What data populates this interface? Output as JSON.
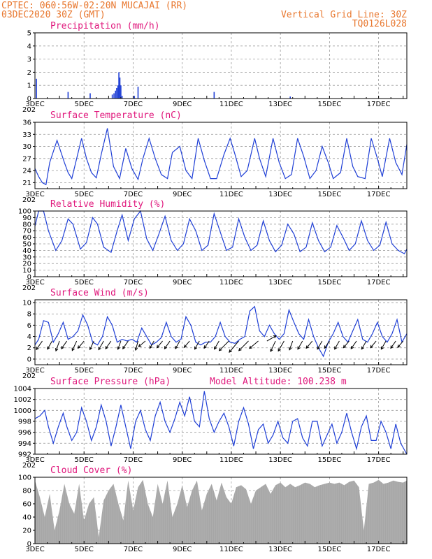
{
  "header": {
    "line1": "CPTEC:   060:56W-02:20N   MUCAJAI (RR)",
    "line2": "03DEC2020 30Z (GMT)",
    "right1": "Vertical Grid Line: 30Z",
    "right2": "TQ0126L028"
  },
  "x_axis": {
    "day_labels": [
      "3DEC",
      "5DEC",
      "7DEC",
      "9DEC",
      "11DEC",
      "13DEC",
      "15DEC",
      "17DEC"
    ],
    "year_fragment": "202"
  },
  "colors": {
    "line": "#1f3fd6",
    "bars": "#1f3fd6",
    "cloud": "#a6a6a6",
    "title": "#e0197d",
    "header": "#e8772e"
  },
  "chart_data": [
    {
      "type": "bar",
      "title": "Precipitation (mm/h)",
      "ylim": [
        0,
        5
      ],
      "yticks": [
        0,
        1,
        2,
        3,
        4,
        5
      ],
      "grid": true,
      "x_unit": "days since 3DEC",
      "bars": [
        {
          "x": 0.06,
          "y": 1.5
        },
        {
          "x": 1.35,
          "y": 0.5
        },
        {
          "x": 2.25,
          "y": 0.4
        },
        {
          "x": 3.15,
          "y": 0.3
        },
        {
          "x": 3.22,
          "y": 0.4
        },
        {
          "x": 3.28,
          "y": 0.6
        },
        {
          "x": 3.33,
          "y": 0.8
        },
        {
          "x": 3.38,
          "y": 1.0
        },
        {
          "x": 3.42,
          "y": 2.0
        },
        {
          "x": 3.46,
          "y": 1.6
        },
        {
          "x": 3.5,
          "y": 1.0
        },
        {
          "x": 3.55,
          "y": 0.2
        },
        {
          "x": 4.05,
          "y": 0.2
        },
        {
          "x": 4.2,
          "y": 0.9
        },
        {
          "x": 7.3,
          "y": 0.5
        },
        {
          "x": 10.4,
          "y": 0.15
        }
      ]
    },
    {
      "type": "line",
      "title": "Surface Temperature (nC)",
      "ylim": [
        19.5,
        36
      ],
      "yticks": [
        21,
        24,
        27,
        30,
        33,
        36
      ],
      "grid": true,
      "x_unit": "days since 3DEC",
      "x": [
        0.0,
        0.15,
        0.3,
        0.45,
        0.6,
        0.9,
        1.2,
        1.35,
        1.5,
        1.7,
        1.9,
        2.1,
        2.3,
        2.5,
        2.7,
        2.95,
        3.2,
        3.45,
        3.7,
        3.95,
        4.2,
        4.4,
        4.65,
        4.9,
        5.15,
        5.4,
        5.6,
        5.9,
        6.15,
        6.4,
        6.65,
        6.9,
        7.15,
        7.4,
        7.7,
        7.95,
        8.15,
        8.4,
        8.65,
        8.95,
        9.15,
        9.4,
        9.7,
        9.95,
        10.2,
        10.45,
        10.7,
        10.95,
        11.2,
        11.45,
        11.7,
        11.95,
        12.15,
        12.45,
        12.7,
        12.95,
        13.15,
        13.45,
        13.7,
        13.95,
        14.15,
        14.45,
        14.7,
        14.95,
        15.15
      ],
      "y": [
        24.5,
        22.5,
        21,
        20.5,
        26,
        31.5,
        26,
        23.5,
        22,
        27,
        32,
        27,
        23.5,
        22.2,
        28,
        34.5,
        25,
        22,
        29.5,
        24.5,
        21.8,
        27,
        32,
        27,
        23,
        22,
        28.5,
        30,
        24,
        22,
        32,
        26.5,
        22,
        22,
        28,
        32,
        28,
        22.5,
        24,
        32,
        27,
        22.5,
        32,
        26,
        22,
        23,
        32,
        27.5,
        22,
        24,
        30,
        26,
        22,
        23.5,
        32,
        25,
        22.5,
        22,
        32,
        27,
        22.5,
        32,
        26,
        23,
        30.5
      ]
    },
    {
      "type": "line",
      "title": "Relative Humidity (%)",
      "ylim": [
        0,
        100
      ],
      "yticks": [
        0,
        10,
        20,
        30,
        40,
        50,
        60,
        70,
        80,
        90,
        100
      ],
      "grid": true,
      "x_unit": "days since 3DEC",
      "x": [
        0.0,
        0.15,
        0.35,
        0.55,
        0.85,
        1.1,
        1.35,
        1.55,
        1.85,
        2.1,
        2.35,
        2.55,
        2.8,
        3.1,
        3.35,
        3.55,
        3.8,
        4.05,
        4.3,
        4.55,
        4.8,
        5.05,
        5.3,
        5.55,
        5.8,
        6.05,
        6.3,
        6.55,
        6.8,
        7.05,
        7.3,
        7.55,
        7.8,
        8.05,
        8.3,
        8.55,
        8.8,
        9.05,
        9.3,
        9.55,
        9.8,
        10.05,
        10.3,
        10.55,
        10.8,
        11.05,
        11.3,
        11.55,
        11.8,
        12.05,
        12.3,
        12.55,
        12.8,
        13.05,
        13.3,
        13.55,
        13.8,
        14.05,
        14.3,
        14.55,
        14.8,
        15.05,
        15.15
      ],
      "y": [
        77,
        100,
        100,
        70,
        40,
        55,
        88,
        80,
        42,
        52,
        90,
        80,
        45,
        37,
        70,
        94,
        55,
        88,
        100,
        58,
        40,
        65,
        92,
        55,
        40,
        50,
        88,
        70,
        40,
        48,
        96,
        68,
        40,
        45,
        88,
        60,
        40,
        48,
        85,
        55,
        38,
        48,
        80,
        65,
        38,
        45,
        82,
        55,
        38,
        45,
        78,
        60,
        40,
        50,
        85,
        55,
        40,
        48,
        83,
        50,
        40,
        35,
        42
      ]
    },
    {
      "type": "line",
      "title": "Surface Wind (m/s)",
      "ylim": [
        -1,
        10.5
      ],
      "yticks": [
        0,
        2,
        4,
        6,
        8,
        10
      ],
      "grid": true,
      "x_unit": "days since 3DEC",
      "x": [
        0.0,
        0.15,
        0.35,
        0.55,
        0.75,
        0.95,
        1.15,
        1.35,
        1.55,
        1.75,
        1.95,
        2.15,
        2.35,
        2.55,
        2.75,
        2.95,
        3.15,
        3.35,
        3.55,
        3.75,
        3.95,
        4.15,
        4.35,
        4.55,
        4.75,
        4.95,
        5.15,
        5.35,
        5.55,
        5.75,
        5.95,
        6.15,
        6.35,
        6.55,
        6.75,
        6.95,
        7.15,
        7.35,
        7.55,
        7.75,
        7.95,
        8.15,
        8.35,
        8.55,
        8.75,
        8.95,
        9.15,
        9.35,
        9.55,
        9.75,
        9.95,
        10.15,
        10.35,
        10.55,
        10.75,
        10.95,
        11.15,
        11.35,
        11.55,
        11.75,
        11.95,
        12.15,
        12.35,
        12.55,
        12.75,
        12.95,
        13.15,
        13.35,
        13.55,
        13.75,
        13.95,
        14.15,
        14.35,
        14.55,
        14.75,
        14.95,
        15.15
      ],
      "y": [
        2.5,
        3.5,
        6.8,
        6.5,
        3,
        4.5,
        6.5,
        3.5,
        4,
        5,
        7.8,
        6,
        3,
        2.5,
        4,
        7.5,
        6,
        3,
        3.5,
        3.2,
        3.5,
        3,
        5.5,
        4,
        2.5,
        3,
        3.8,
        6.5,
        4,
        3,
        3.5,
        7.5,
        6,
        3,
        2.5,
        3,
        3,
        4,
        6.5,
        4,
        3,
        2.8,
        3.5,
        4,
        8.5,
        9.3,
        5,
        4,
        6,
        4.5,
        3.5,
        4.5,
        8.7,
        6.5,
        4.5,
        3.5,
        7,
        4,
        2,
        0.5,
        3,
        4.5,
        6.5,
        4,
        3,
        5,
        7,
        3.5,
        3,
        4.5,
        6.5,
        4,
        3,
        4.5,
        7,
        3,
        4.5
      ]
    },
    {
      "type": "line",
      "title": "Surface Pressure (hPa)",
      "annotation": "Model Altitude: 100.238 m",
      "ylim": [
        992,
        1004
      ],
      "yticks": [
        992,
        994,
        996,
        998,
        1000,
        1002,
        1004
      ],
      "grid": true,
      "x_unit": "days since 3DEC",
      "x": [
        0.0,
        0.2,
        0.4,
        0.55,
        0.75,
        0.95,
        1.15,
        1.3,
        1.5,
        1.7,
        1.9,
        2.1,
        2.3,
        2.5,
        2.7,
        2.9,
        3.1,
        3.3,
        3.5,
        3.7,
        3.9,
        4.1,
        4.3,
        4.5,
        4.7,
        4.9,
        5.1,
        5.3,
        5.5,
        5.7,
        5.9,
        6.1,
        6.3,
        6.5,
        6.7,
        6.9,
        7.1,
        7.3,
        7.5,
        7.7,
        7.9,
        8.1,
        8.3,
        8.5,
        8.7,
        8.9,
        9.1,
        9.3,
        9.5,
        9.7,
        9.9,
        10.1,
        10.3,
        10.5,
        10.7,
        10.9,
        11.1,
        11.3,
        11.5,
        11.7,
        11.9,
        12.1,
        12.3,
        12.5,
        12.7,
        12.9,
        13.1,
        13.3,
        13.5,
        13.7,
        13.9,
        14.1,
        14.3,
        14.5,
        14.7,
        14.9,
        15.15
      ],
      "y": [
        998.5,
        999,
        1000,
        997,
        994,
        997,
        999.5,
        997,
        994.5,
        996,
        1000.5,
        998,
        994.5,
        997,
        1001,
        998,
        993.5,
        997,
        1001,
        997,
        993,
        998,
        1000,
        996.5,
        994.5,
        999,
        1001.5,
        998,
        996,
        998.5,
        1001.5,
        999,
        1002.5,
        998,
        997,
        1003.5,
        998.5,
        996,
        998,
        999.5,
        997,
        993.5,
        998,
        1000.5,
        997.5,
        993,
        996.5,
        997.5,
        994,
        995.5,
        998,
        995,
        994,
        998,
        998.5,
        995,
        993.5,
        998,
        998,
        993.5,
        995.5,
        997.5,
        994,
        996,
        999.5,
        996,
        993,
        997,
        999,
        994.5,
        994.5,
        998,
        996,
        993,
        997.5,
        994,
        992
      ]
    },
    {
      "type": "area",
      "title": "Cloud Cover (%)",
      "ylim": [
        0,
        100
      ],
      "yticks": [
        0,
        20,
        40,
        60,
        80,
        100
      ],
      "grid": true,
      "x_unit": "days since 3DEC",
      "x": [
        0.0,
        0.2,
        0.4,
        0.6,
        0.8,
        1.0,
        1.2,
        1.4,
        1.6,
        1.8,
        2.0,
        2.2,
        2.4,
        2.6,
        2.8,
        3.0,
        3.2,
        3.4,
        3.6,
        3.8,
        4.0,
        4.2,
        4.4,
        4.6,
        4.8,
        5.0,
        5.2,
        5.4,
        5.6,
        5.8,
        6.0,
        6.2,
        6.4,
        6.6,
        6.8,
        7.0,
        7.2,
        7.4,
        7.6,
        7.8,
        8.0,
        8.2,
        8.4,
        8.6,
        8.8,
        9.0,
        9.2,
        9.4,
        9.6,
        9.8,
        10.0,
        10.2,
        10.4,
        10.6,
        10.8,
        11.0,
        11.2,
        11.4,
        11.6,
        11.8,
        12.0,
        12.2,
        12.4,
        12.6,
        12.8,
        13.0,
        13.2,
        13.4,
        13.6,
        13.8,
        14.0,
        14.2,
        14.4,
        14.6,
        14.8,
        15.0,
        15.15
      ],
      "y": [
        95,
        70,
        40,
        75,
        20,
        50,
        90,
        60,
        45,
        90,
        35,
        60,
        70,
        10,
        65,
        80,
        90,
        60,
        35,
        95,
        50,
        85,
        96,
        60,
        40,
        90,
        60,
        95,
        40,
        60,
        88,
        55,
        80,
        95,
        50,
        75,
        90,
        65,
        92,
        70,
        60,
        85,
        88,
        82,
        60,
        80,
        85,
        90,
        75,
        88,
        92,
        85,
        90,
        85,
        88,
        92,
        90,
        85,
        88,
        90,
        92,
        90,
        92,
        88,
        93,
        95,
        85,
        20,
        90,
        92,
        96,
        90,
        92,
        95,
        93,
        92,
        95
      ]
    }
  ],
  "wind_arrows": [
    {
      "x": 0.3,
      "dir": 215,
      "mag": 3
    },
    {
      "x": 0.7,
      "dir": 210,
      "mag": 2.5
    },
    {
      "x": 1.0,
      "dir": 200,
      "mag": 3
    },
    {
      "x": 1.3,
      "dir": 215,
      "mag": 2.5
    },
    {
      "x": 1.7,
      "dir": 205,
      "mag": 3
    },
    {
      "x": 2.0,
      "dir": 220,
      "mag": 2.5
    },
    {
      "x": 2.4,
      "dir": 205,
      "mag": 2.5
    },
    {
      "x": 2.8,
      "dir": 210,
      "mag": 2.8
    },
    {
      "x": 3.1,
      "dir": 215,
      "mag": 2.5
    },
    {
      "x": 3.5,
      "dir": 200,
      "mag": 2.2
    },
    {
      "x": 3.8,
      "dir": 215,
      "mag": 2.5
    },
    {
      "x": 4.2,
      "dir": 195,
      "mag": 2.5
    },
    {
      "x": 4.5,
      "dir": 230,
      "mag": 2.2
    },
    {
      "x": 4.85,
      "dir": 210,
      "mag": 2
    },
    {
      "x": 5.2,
      "dir": 220,
      "mag": 2.2
    },
    {
      "x": 5.5,
      "dir": 215,
      "mag": 2.5
    },
    {
      "x": 5.9,
      "dir": 210,
      "mag": 2.2
    },
    {
      "x": 6.3,
      "dir": 220,
      "mag": 2
    },
    {
      "x": 6.7,
      "dir": 210,
      "mag": 2.5
    },
    {
      "x": 7.1,
      "dir": 215,
      "mag": 2.2
    },
    {
      "x": 7.5,
      "dir": 210,
      "mag": 2.5
    },
    {
      "x": 7.9,
      "dir": 225,
      "mag": 4.5
    },
    {
      "x": 8.3,
      "dir": 220,
      "mag": 5
    },
    {
      "x": 8.7,
      "dir": 225,
      "mag": 4.5
    },
    {
      "x": 9.1,
      "dir": 230,
      "mag": 3.5
    },
    {
      "x": 9.45,
      "dir": 60,
      "mag": 3
    },
    {
      "x": 9.8,
      "dir": 205,
      "mag": 3.5
    },
    {
      "x": 10.15,
      "dir": 210,
      "mag": 3.5
    },
    {
      "x": 10.5,
      "dir": 200,
      "mag": 2.5
    },
    {
      "x": 10.9,
      "dir": 210,
      "mag": 2.5
    },
    {
      "x": 11.3,
      "dir": 220,
      "mag": 2.5
    },
    {
      "x": 11.7,
      "dir": 210,
      "mag": 2.5
    },
    {
      "x": 12.0,
      "dir": 215,
      "mag": 2.2
    },
    {
      "x": 12.4,
      "dir": 210,
      "mag": 2.5
    },
    {
      "x": 12.8,
      "dir": 220,
      "mag": 2.2
    },
    {
      "x": 13.1,
      "dir": 215,
      "mag": 2.5
    },
    {
      "x": 13.5,
      "dir": 210,
      "mag": 2.5
    },
    {
      "x": 13.9,
      "dir": 220,
      "mag": 2.2
    },
    {
      "x": 14.3,
      "dir": 210,
      "mag": 2.5
    },
    {
      "x": 14.7,
      "dir": 215,
      "mag": 2.2
    },
    {
      "x": 15.0,
      "dir": 220,
      "mag": 2
    }
  ]
}
